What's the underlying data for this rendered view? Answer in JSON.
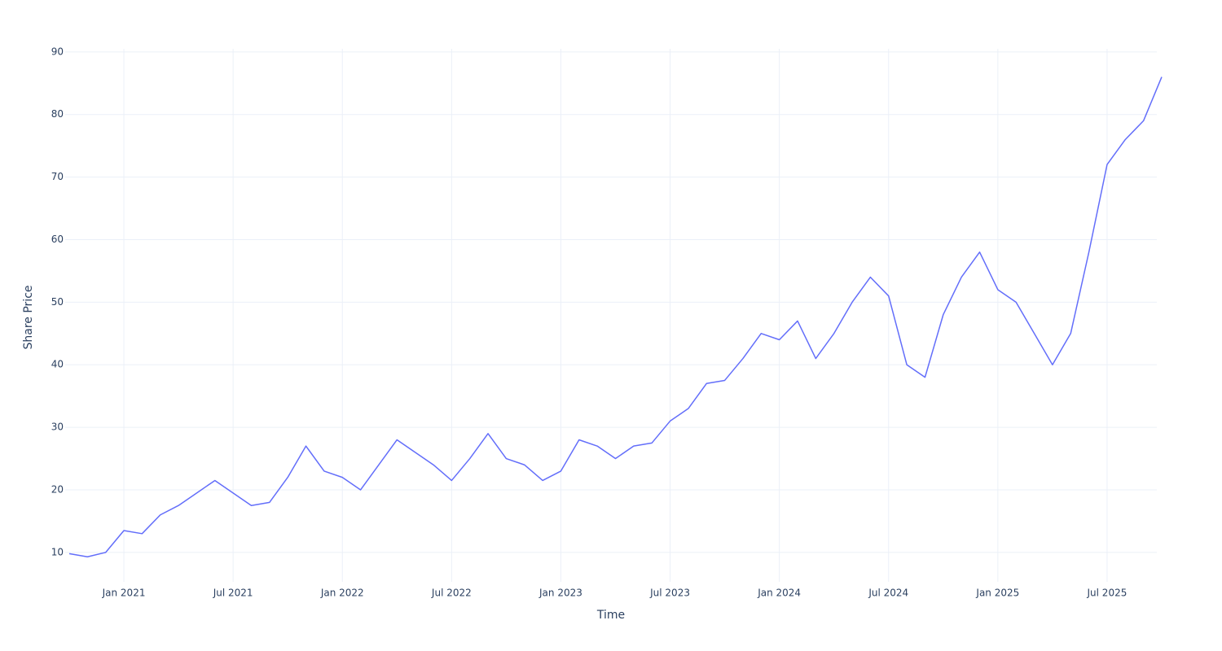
{
  "chart_data": {
    "type": "line",
    "x_label": "Time",
    "y_label": "Share Price",
    "x": [
      "2020-10",
      "2020-11",
      "2020-12",
      "2021-01",
      "2021-02",
      "2021-03",
      "2021-04",
      "2021-05",
      "2021-06",
      "2021-07",
      "2021-08",
      "2021-09",
      "2021-10",
      "2021-11",
      "2021-12",
      "2022-01",
      "2022-02",
      "2022-03",
      "2022-04",
      "2022-05",
      "2022-06",
      "2022-07",
      "2022-08",
      "2022-09",
      "2022-10",
      "2022-11",
      "2022-12",
      "2023-01",
      "2023-02",
      "2023-03",
      "2023-04",
      "2023-05",
      "2023-06",
      "2023-07",
      "2023-08",
      "2023-09",
      "2023-10",
      "2023-11",
      "2023-12",
      "2024-01",
      "2024-02",
      "2024-03",
      "2024-04",
      "2024-05",
      "2024-06",
      "2024-07",
      "2024-08",
      "2024-09",
      "2024-10",
      "2024-11",
      "2024-12",
      "2025-01",
      "2025-02",
      "2025-03",
      "2025-04",
      "2025-05",
      "2025-06",
      "2025-07",
      "2025-08",
      "2025-09",
      "2025-10"
    ],
    "series": [
      {
        "name": "Share Price",
        "color": "#636efa",
        "values": [
          9.8,
          9.3,
          10.0,
          13.5,
          13,
          16,
          17.5,
          19.5,
          21.5,
          19.5,
          17.5,
          18,
          22,
          27,
          23,
          22,
          20,
          24,
          28,
          26,
          24,
          21.5,
          25,
          29,
          25,
          24,
          21.5,
          23,
          28,
          27,
          25,
          27,
          27.5,
          31,
          33,
          37,
          37.5,
          41,
          45,
          44,
          47,
          41,
          45,
          50,
          54,
          51,
          40,
          38,
          48,
          54,
          58,
          52,
          50,
          45,
          40,
          45,
          58,
          72,
          76,
          79,
          86
        ]
      }
    ],
    "xlim": [
      "2020-10",
      "2025-10"
    ],
    "xticks": [
      {
        "value": "2021-01",
        "label": "Jan 2021"
      },
      {
        "value": "2021-07",
        "label": "Jul 2021"
      },
      {
        "value": "2022-01",
        "label": "Jan 2022"
      },
      {
        "value": "2022-07",
        "label": "Jul 2022"
      },
      {
        "value": "2023-01",
        "label": "Jan 2023"
      },
      {
        "value": "2023-07",
        "label": "Jul 2023"
      },
      {
        "value": "2024-01",
        "label": "Jan 2024"
      },
      {
        "value": "2024-07",
        "label": "Jul 2024"
      },
      {
        "value": "2025-01",
        "label": "Jan 2025"
      },
      {
        "value": "2025-07",
        "label": "Jul 2025"
      }
    ],
    "ylim": [
      5.3,
      90.5
    ],
    "yticks": [
      10,
      20,
      30,
      40,
      50,
      60,
      70,
      80,
      90
    ],
    "grid": true
  }
}
